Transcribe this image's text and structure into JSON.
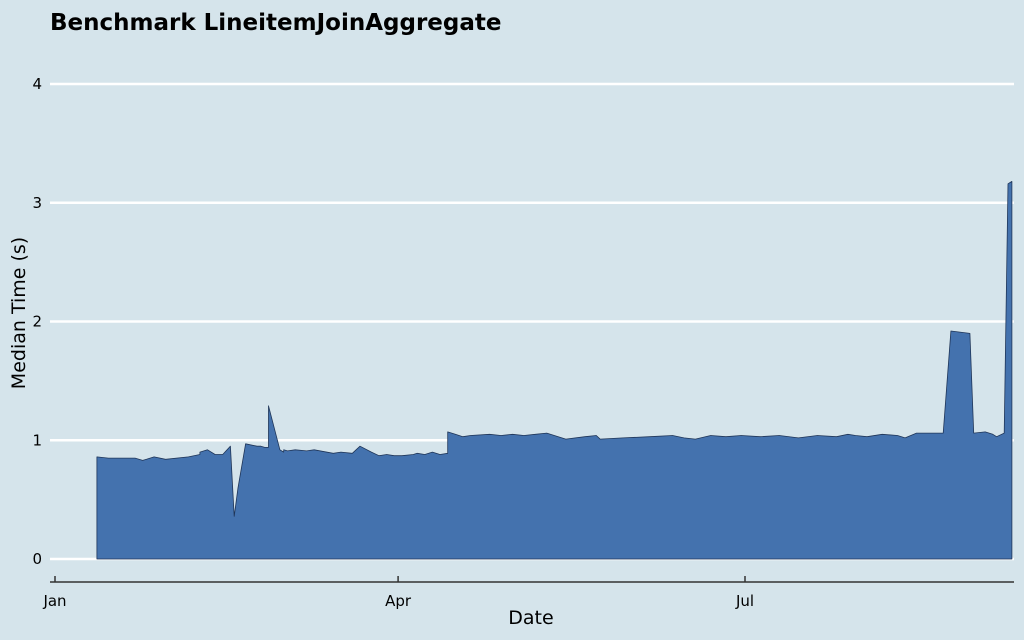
{
  "chart_data": {
    "type": "area",
    "title": "Benchmark LineitemJoinAggregate",
    "xlabel": "Date",
    "ylabel": "Median Time (s)",
    "ylim": [
      0,
      4
    ],
    "xlim": [
      "2023-01-01",
      "2023-09-30"
    ],
    "yticks": [
      0,
      1,
      2,
      3,
      4
    ],
    "xticks": [
      {
        "label": "Jan",
        "date": "2023-01-01"
      },
      {
        "label": "Apr",
        "date": "2023-04-01"
      },
      {
        "label": "Jul",
        "date": "2023-07-01"
      }
    ],
    "grid": "horizontal",
    "fill_color": "#4472ae",
    "line_color": "#1f3558",
    "series": [
      {
        "x": [
          "2023-01-12",
          "2023-01-12",
          "2023-01-15",
          "2023-01-22",
          "2023-01-24",
          "2023-01-25",
          "2023-01-27",
          "2023-01-30",
          "2023-02-05",
          "2023-02-08",
          "2023-02-08",
          "2023-02-10",
          "2023-02-12",
          "2023-02-14",
          "2023-02-16",
          "2023-02-17",
          "2023-02-18",
          "2023-02-20",
          "2023-02-23",
          "2023-02-24",
          "2023-02-25",
          "2023-02-26",
          "2023-02-26",
          "2023-03-01",
          "2023-03-02",
          "2023-03-02",
          "2023-03-03",
          "2023-03-05",
          "2023-03-08",
          "2023-03-10",
          "2023-03-15",
          "2023-03-17",
          "2023-03-20",
          "2023-03-22",
          "2023-03-25",
          "2023-03-27",
          "2023-03-29",
          "2023-03-31",
          "2023-04-02",
          "2023-04-05",
          "2023-04-06",
          "2023-04-08",
          "2023-04-10",
          "2023-04-12",
          "2023-04-14",
          "2023-04-14",
          "2023-04-16",
          "2023-04-18",
          "2023-04-20",
          "2023-04-25",
          "2023-04-28",
          "2023-05-01",
          "2023-05-04",
          "2023-05-07",
          "2023-05-10",
          "2023-05-15",
          "2023-05-20",
          "2023-05-23",
          "2023-05-24",
          "2023-05-30",
          "2023-06-06",
          "2023-06-12",
          "2023-06-15",
          "2023-06-18",
          "2023-06-22",
          "2023-06-26",
          "2023-06-30",
          "2023-07-05",
          "2023-07-10",
          "2023-07-15",
          "2023-07-20",
          "2023-07-25",
          "2023-07-28",
          "2023-07-30",
          "2023-08-02",
          "2023-08-06",
          "2023-08-10",
          "2023-08-12",
          "2023-08-15",
          "2023-08-20",
          "2023-08-22",
          "2023-08-24",
          "2023-08-29",
          "2023-08-30",
          "2023-09-02",
          "2023-09-04",
          "2023-09-05",
          "2023-09-07",
          "2023-09-08",
          "2023-09-09",
          "2023-09-09"
        ],
        "y": [
          0,
          0.86,
          0.85,
          0.85,
          0.83,
          0.84,
          0.86,
          0.84,
          0.86,
          0.88,
          0.9,
          0.92,
          0.88,
          0.88,
          0.95,
          0.36,
          0.6,
          0.97,
          0.95,
          0.95,
          0.94,
          0.94,
          1.29,
          0.92,
          0.9,
          0.92,
          0.91,
          0.92,
          0.91,
          0.92,
          0.89,
          0.9,
          0.89,
          0.95,
          0.9,
          0.87,
          0.88,
          0.87,
          0.87,
          0.88,
          0.89,
          0.88,
          0.9,
          0.88,
          0.89,
          1.07,
          1.05,
          1.03,
          1.04,
          1.05,
          1.04,
          1.05,
          1.04,
          1.05,
          1.06,
          1.01,
          1.03,
          1.04,
          1.01,
          1.02,
          1.03,
          1.04,
          1.02,
          1.01,
          1.04,
          1.03,
          1.04,
          1.03,
          1.04,
          1.02,
          1.04,
          1.03,
          1.05,
          1.04,
          1.03,
          1.05,
          1.04,
          1.02,
          1.06,
          1.06,
          1.06,
          1.92,
          1.9,
          1.06,
          1.07,
          1.05,
          1.03,
          1.06,
          3.16,
          3.18,
          0
        ]
      }
    ]
  }
}
